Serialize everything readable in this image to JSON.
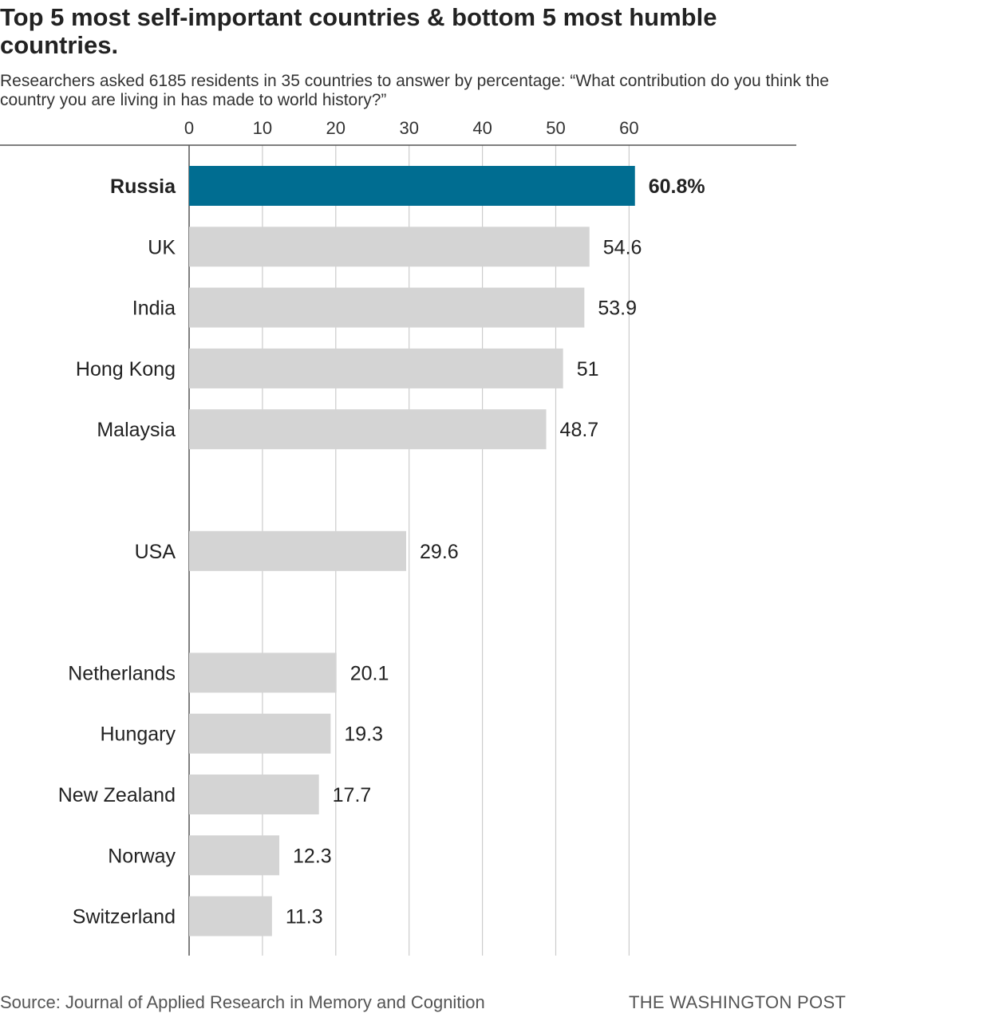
{
  "header": {
    "title": "Top 5 most self-important countries & bottom 5 most humble countries.",
    "subtitle": "Researchers asked 6185 residents in 35 countries to answer by percentage: “What contribution do you think the country you are living in has made to world history?”"
  },
  "footer": {
    "source": "Source: Journal of Applied Research in Memory and Cognition",
    "credit": "THE WASHINGTON POST"
  },
  "colors": {
    "highlight": "#006d91",
    "bar": "#d4d4d4",
    "grid": "#cccccc",
    "axis": "#555555"
  },
  "chart_data": {
    "type": "bar",
    "orientation": "horizontal",
    "title": "Top 5 most self-important countries & bottom 5 most humble countries.",
    "xlim": [
      0,
      65
    ],
    "xticks": [
      0,
      10,
      20,
      30,
      40,
      50,
      60
    ],
    "grid": true,
    "highlight": "Russia",
    "bars": [
      {
        "category": "Russia",
        "value": 60.8,
        "label": "60.8%",
        "group": "top"
      },
      {
        "category": "UK",
        "value": 54.6,
        "label": "54.6",
        "group": "top"
      },
      {
        "category": "India",
        "value": 53.9,
        "label": "53.9",
        "group": "top"
      },
      {
        "category": "Hong Kong",
        "value": 51,
        "label": "51",
        "group": "top"
      },
      {
        "category": "Malaysia",
        "value": 48.7,
        "label": "48.7",
        "group": "top"
      },
      {
        "category": "USA",
        "value": 29.6,
        "label": "29.6",
        "group": "middle"
      },
      {
        "category": "Netherlands",
        "value": 20.1,
        "label": "20.1",
        "group": "bottom"
      },
      {
        "category": "Hungary",
        "value": 19.3,
        "label": "19.3",
        "group": "bottom"
      },
      {
        "category": "New Zealand",
        "value": 17.7,
        "label": "17.7",
        "group": "bottom"
      },
      {
        "category": "Norway",
        "value": 12.3,
        "label": "12.3",
        "group": "bottom"
      },
      {
        "category": "Switzerland",
        "value": 11.3,
        "label": "11.3",
        "group": "bottom"
      }
    ]
  }
}
